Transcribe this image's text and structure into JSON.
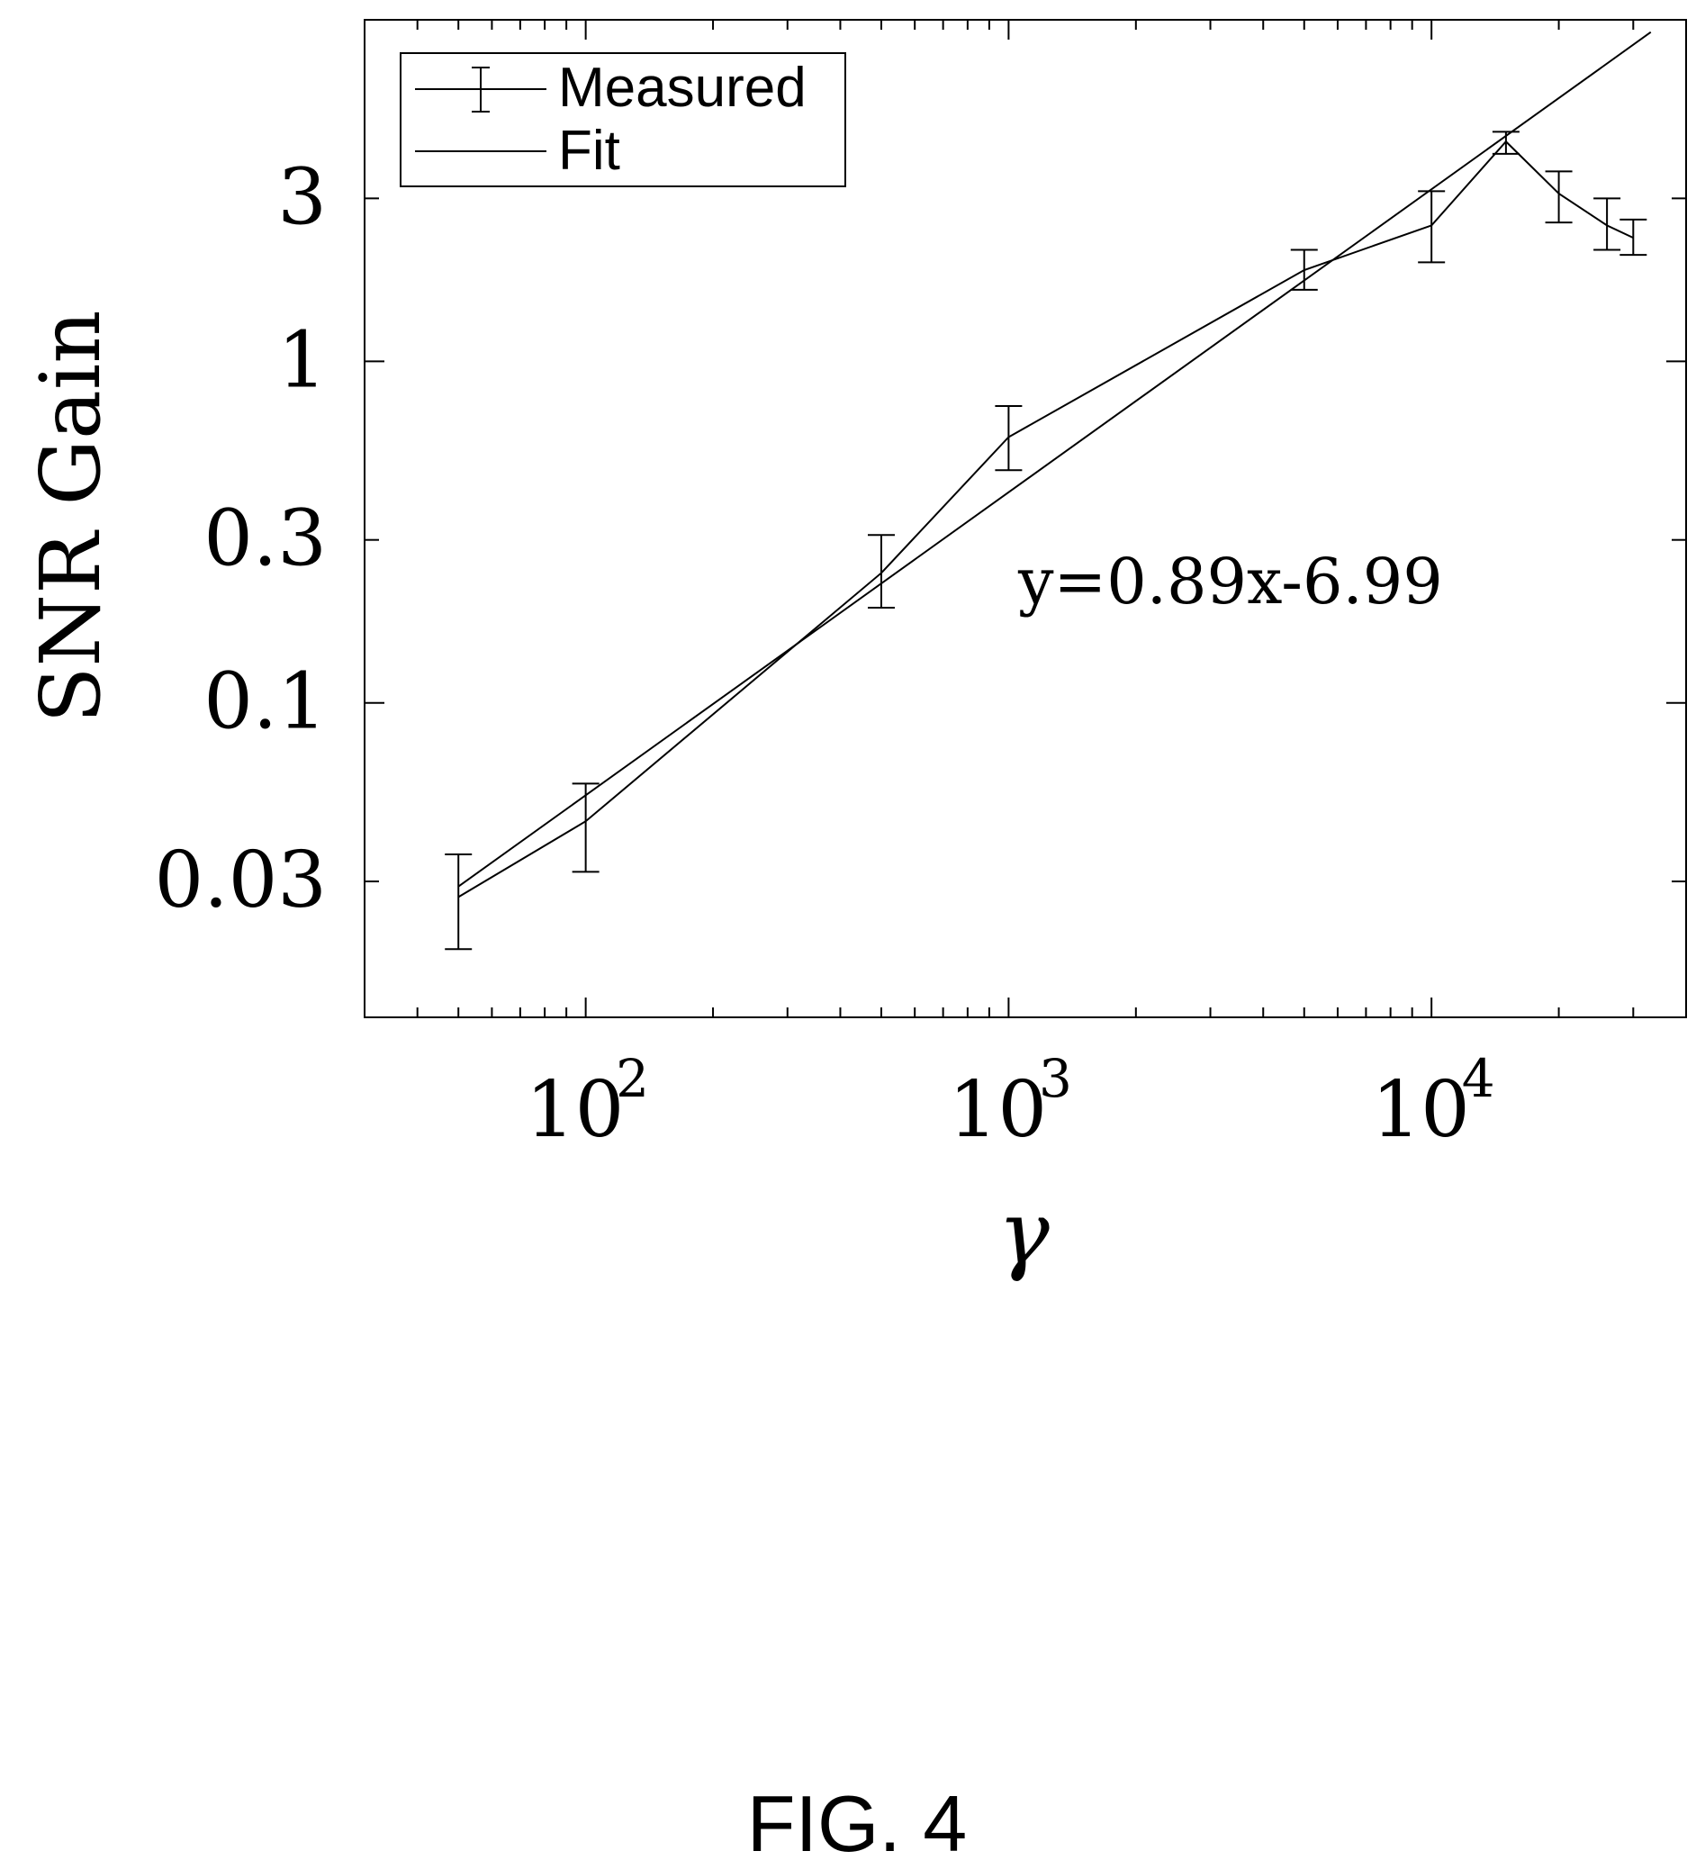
{
  "figure_caption": "FIG. 4",
  "chart_data": {
    "type": "line",
    "xlabel": "γ",
    "ylabel": "SNR Gain",
    "xscale": "log",
    "yscale": "log",
    "xlim": [
      30,
      40000
    ],
    "ylim": [
      0.012,
      10
    ],
    "x_ticks": [
      {
        "value": 100,
        "base": "10",
        "exp": "2"
      },
      {
        "value": 1000,
        "base": "10",
        "exp": "3"
      },
      {
        "value": 10000,
        "base": "10",
        "exp": "4"
      }
    ],
    "y_ticks": [
      {
        "value": 0.03,
        "label": "0.03"
      },
      {
        "value": 0.1,
        "label": "0.1"
      },
      {
        "value": 0.3,
        "label": "0.3"
      },
      {
        "value": 1,
        "label": "1"
      },
      {
        "value": 3,
        "label": "3"
      }
    ],
    "grid": false,
    "legend_position": "top-left",
    "series": [
      {
        "name": "Measured",
        "style": "errorbar",
        "color": "#000000",
        "x": [
          50,
          100,
          500,
          1000,
          5000,
          10000,
          15000,
          20000,
          26000,
          30000
        ],
        "y": [
          0.027,
          0.045,
          0.24,
          0.6,
          1.85,
          2.5,
          4.4,
          3.1,
          2.5,
          2.3
        ],
        "y_err_low": [
          0.019,
          0.032,
          0.19,
          0.48,
          1.62,
          1.95,
          4.05,
          2.55,
          2.12,
          2.05
        ],
        "y_err_high": [
          0.036,
          0.058,
          0.31,
          0.74,
          2.12,
          3.15,
          4.7,
          3.6,
          3.0,
          2.6
        ]
      },
      {
        "name": "Fit",
        "style": "line",
        "color": "#000000",
        "x": [
          50,
          33000
        ],
        "y": [
          0.029,
          9.2
        ]
      }
    ],
    "annotations": [
      {
        "text": "y=0.89x-6.99",
        "x": 1000,
        "y": 0.2
      }
    ]
  }
}
